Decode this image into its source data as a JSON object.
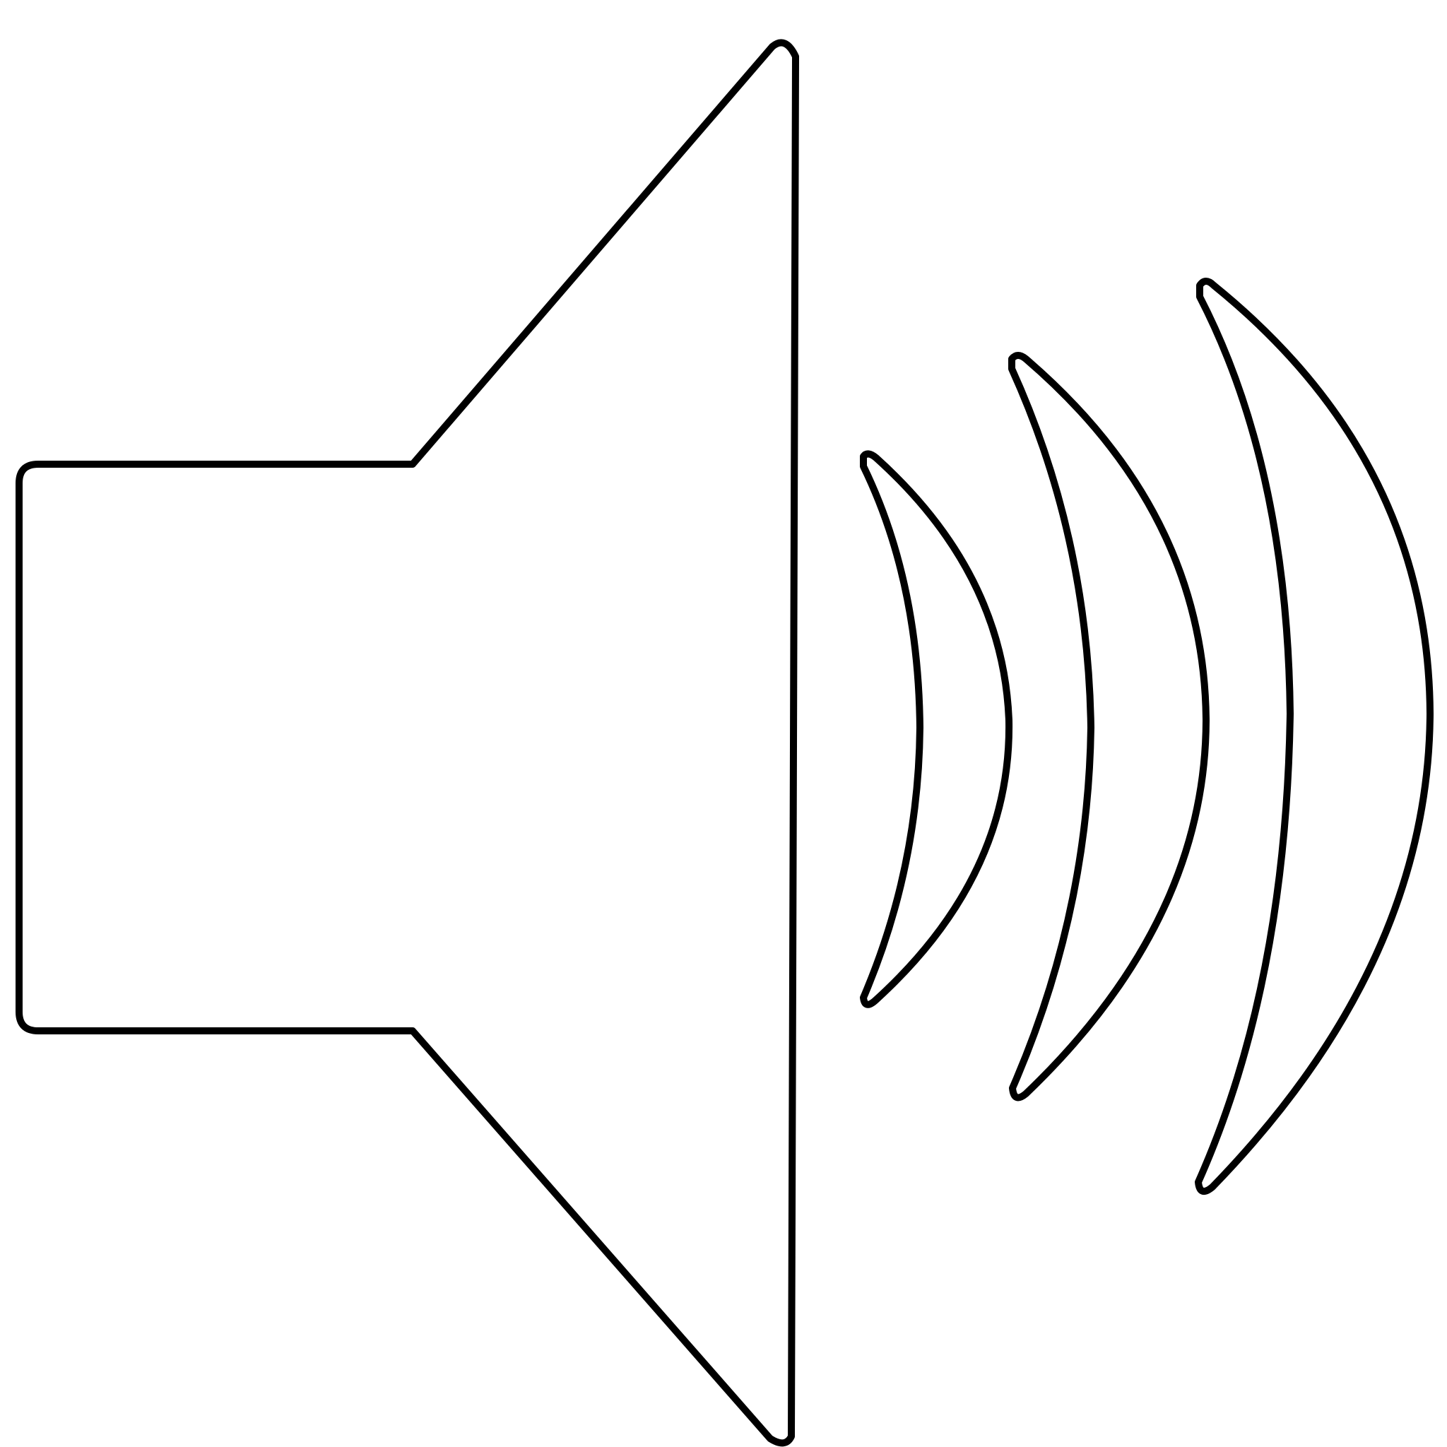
{
  "icon": {
    "name": "speaker-volume-icon",
    "sound_waves": 3
  },
  "colors": {
    "background": "#ffffff",
    "outline": "#000000",
    "fill": "#ffffff"
  }
}
